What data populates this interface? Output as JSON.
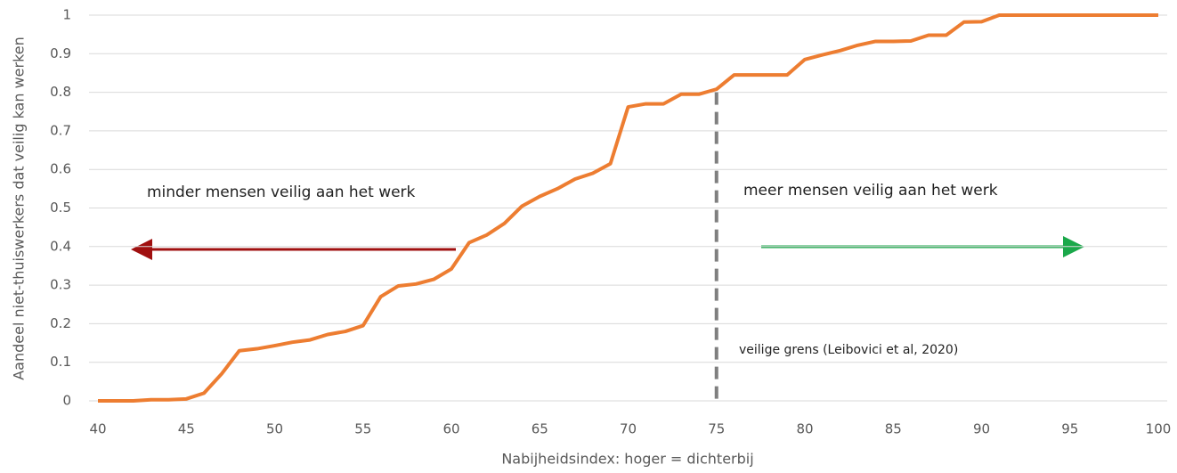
{
  "chart_data": {
    "type": "line",
    "x_label": "Nabijheidsindex: hoger = dichterbij",
    "y_label": "Aandeel  niet-thuiswerkers dat veilig kan werken",
    "x": [
      40,
      41,
      42,
      43,
      44,
      45,
      46,
      47,
      48,
      49,
      50,
      51,
      52,
      53,
      54,
      55,
      56,
      57,
      58,
      59,
      60,
      61,
      62,
      63,
      64,
      65,
      66,
      67,
      68,
      69,
      70,
      71,
      72,
      73,
      74,
      75,
      76,
      77,
      78,
      79,
      80,
      81,
      82,
      83,
      84,
      85,
      86,
      87,
      88,
      89,
      90,
      91,
      92,
      93,
      94,
      95,
      96,
      97,
      98,
      99,
      100
    ],
    "values": [
      0,
      0,
      0,
      0.003,
      0.003,
      0.005,
      0.02,
      0.07,
      0.13,
      0.135,
      0.143,
      0.152,
      0.158,
      0.172,
      0.18,
      0.195,
      0.27,
      0.298,
      0.303,
      0.315,
      0.342,
      0.41,
      0.43,
      0.46,
      0.505,
      0.53,
      0.55,
      0.575,
      0.59,
      0.615,
      0.762,
      0.77,
      0.77,
      0.795,
      0.795,
      0.808,
      0.845,
      0.845,
      0.845,
      0.845,
      0.885,
      0.897,
      0.908,
      0.922,
      0.932,
      0.932,
      0.933,
      0.948,
      0.948,
      0.982,
      0.983,
      1,
      1,
      1,
      1,
      1,
      1,
      1,
      1,
      1,
      1
    ],
    "color": "#ED7D31",
    "xlim": [
      40,
      100
    ],
    "xticks": [
      40,
      45,
      50,
      55,
      60,
      65,
      70,
      75,
      80,
      85,
      90,
      95,
      100
    ],
    "ylim": [
      0,
      1
    ],
    "yticks": [
      0,
      0.1,
      0.2,
      0.3,
      0.4,
      0.5,
      0.6,
      0.7,
      0.8,
      0.9,
      1
    ],
    "grid": true,
    "threshold": {
      "x": 75,
      "y": 0.8
    },
    "annotations": [
      "minder mensen veilig aan het werk",
      "meer mensen veilig aan het werk",
      "veilige grens (Leibovici et al, 2020)"
    ]
  }
}
